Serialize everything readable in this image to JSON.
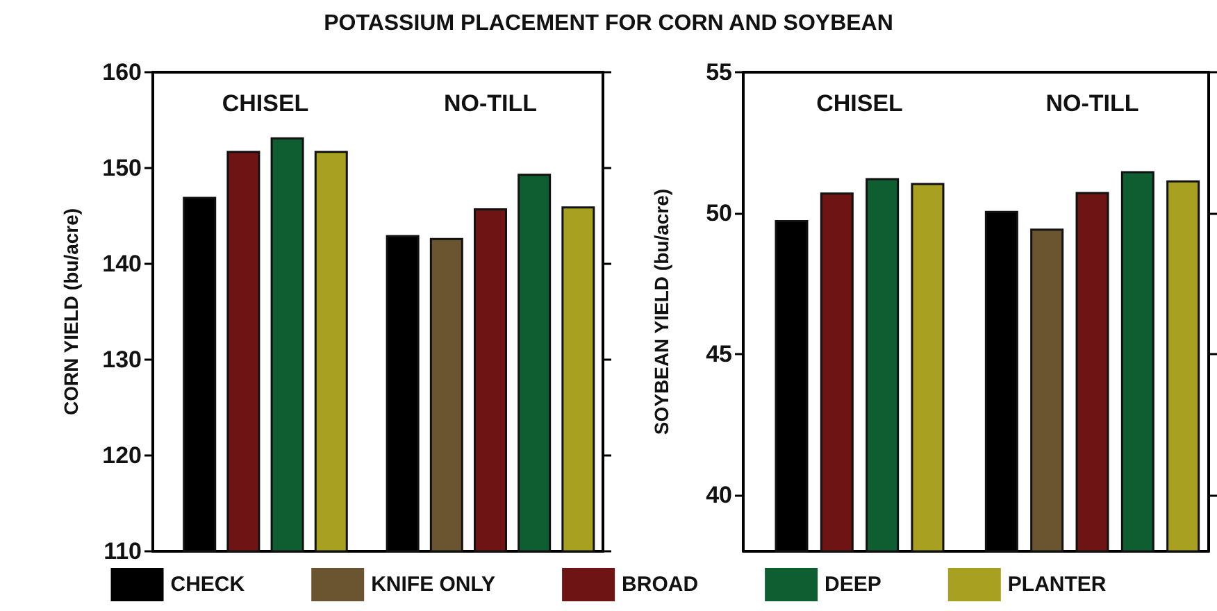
{
  "chart_data": [
    {
      "type": "bar",
      "title": "POTASSIUM PLACEMENT FOR CORN AND SOYBEAN",
      "ylabel": "CORN YIELD (bu/acre)",
      "categories": [
        "CHISEL",
        "NO-TILL"
      ],
      "ylim": [
        110,
        160
      ],
      "yticks": [
        110,
        120,
        130,
        140,
        150,
        160
      ],
      "legend": "bottom",
      "series": [
        {
          "name": "CHECK",
          "color": "#000000",
          "values": [
            147.0,
            143.0
          ]
        },
        {
          "name": "KNIFE ONLY",
          "color": "#6b5530",
          "values": [
            null,
            142.7
          ]
        },
        {
          "name": "BROAD",
          "color": "#6e1414",
          "values": [
            151.8,
            145.8
          ]
        },
        {
          "name": "DEEP",
          "color": "#0f5e32",
          "values": [
            153.2,
            149.4
          ]
        },
        {
          "name": "PLANTER",
          "color": "#a8a020",
          "values": [
            151.8,
            146.0
          ]
        }
      ]
    },
    {
      "type": "bar",
      "ylabel": "SOYBEAN YIELD (bu/acre)",
      "categories": [
        "CHISEL",
        "NO-TILL"
      ],
      "ylim": [
        38,
        55
      ],
      "yticks": [
        40,
        45,
        50,
        55
      ],
      "legend": "bottom",
      "series": [
        {
          "name": "CHECK",
          "color": "#000000",
          "values": [
            49.75,
            50.08
          ]
        },
        {
          "name": "KNIFE ONLY",
          "color": "#6b5530",
          "values": [
            null,
            49.45
          ]
        },
        {
          "name": "BROAD",
          "color": "#6e1414",
          "values": [
            50.73,
            50.75
          ]
        },
        {
          "name": "DEEP",
          "color": "#0f5e32",
          "values": [
            51.24,
            51.49
          ]
        },
        {
          "name": "PLANTER",
          "color": "#a8a020",
          "values": [
            51.07,
            51.16
          ]
        }
      ]
    }
  ]
}
